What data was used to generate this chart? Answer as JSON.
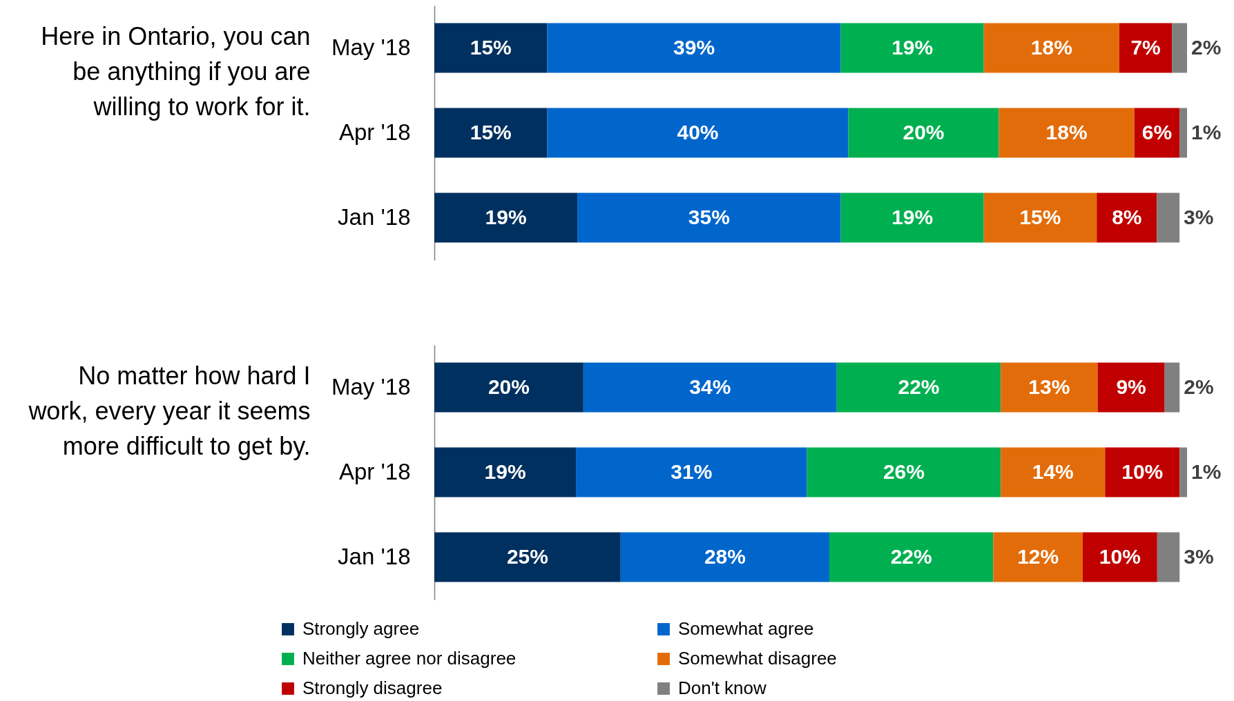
{
  "chart_data": [
    {
      "type": "bar",
      "orientation": "horizontal",
      "stacked": true,
      "ylabel": "Here in Ontario, you can be anything if you are willing to work for it.",
      "categories": [
        "May '18",
        "Apr '18",
        "Jan '18"
      ],
      "tick_labels": "y",
      "legend": "bottom",
      "series": [
        {
          "name": "Strongly agree",
          "color": "#00305f",
          "values": [
            15,
            15,
            19
          ],
          "value_labels": [
            "15%",
            "15%",
            "19%"
          ]
        },
        {
          "name": "Somewhat agree",
          "color": "#0066cc",
          "values": [
            39,
            40,
            35
          ],
          "value_labels": [
            "39%",
            "40%",
            "35%"
          ]
        },
        {
          "name": "Neither agree nor disagree",
          "color": "#00b050",
          "values": [
            19,
            20,
            19
          ],
          "value_labels": [
            "19%",
            "20%",
            "19%"
          ]
        },
        {
          "name": "Somewhat disagree",
          "color": "#e36c0a",
          "values": [
            18,
            18,
            15
          ],
          "value_labels": [
            "18%",
            "18%",
            "15%"
          ]
        },
        {
          "name": "Strongly disagree",
          "color": "#c00000",
          "values": [
            7,
            6,
            8
          ],
          "value_labels": [
            "7%",
            "6%",
            "8%"
          ]
        },
        {
          "name": "Don't know",
          "color": "#808080",
          "values": [
            2,
            1,
            3
          ],
          "value_labels": [
            "2%",
            "1%",
            "3%"
          ]
        }
      ]
    },
    {
      "type": "bar",
      "orientation": "horizontal",
      "stacked": true,
      "ylabel": "No matter how hard I work, every year it seems more difficult to get by.",
      "categories": [
        "May '18",
        "Apr '18",
        "Jan '18"
      ],
      "tick_labels": "y",
      "legend": "bottom",
      "series": [
        {
          "name": "Strongly agree",
          "color": "#00305f",
          "values": [
            20,
            19,
            25
          ],
          "value_labels": [
            "20%",
            "19%",
            "25%"
          ]
        },
        {
          "name": "Somewhat agree",
          "color": "#0066cc",
          "values": [
            34,
            31,
            28
          ],
          "value_labels": [
            "34%",
            "31%",
            "28%"
          ]
        },
        {
          "name": "Neither agree nor disagree",
          "color": "#00b050",
          "values": [
            22,
            26,
            22
          ],
          "value_labels": [
            "22%",
            "26%",
            "22%"
          ]
        },
        {
          "name": "Somewhat disagree",
          "color": "#e36c0a",
          "values": [
            13,
            14,
            12
          ],
          "value_labels": [
            "13%",
            "14%",
            "12%"
          ]
        },
        {
          "name": "Strongly disagree",
          "color": "#c00000",
          "values": [
            9,
            10,
            10
          ],
          "value_labels": [
            "9%",
            "10%",
            "10%"
          ]
        },
        {
          "name": "Don't know",
          "color": "#808080",
          "values": [
            2,
            1,
            3
          ],
          "value_labels": [
            "2%",
            "1%",
            "3%"
          ]
        }
      ]
    }
  ]
}
